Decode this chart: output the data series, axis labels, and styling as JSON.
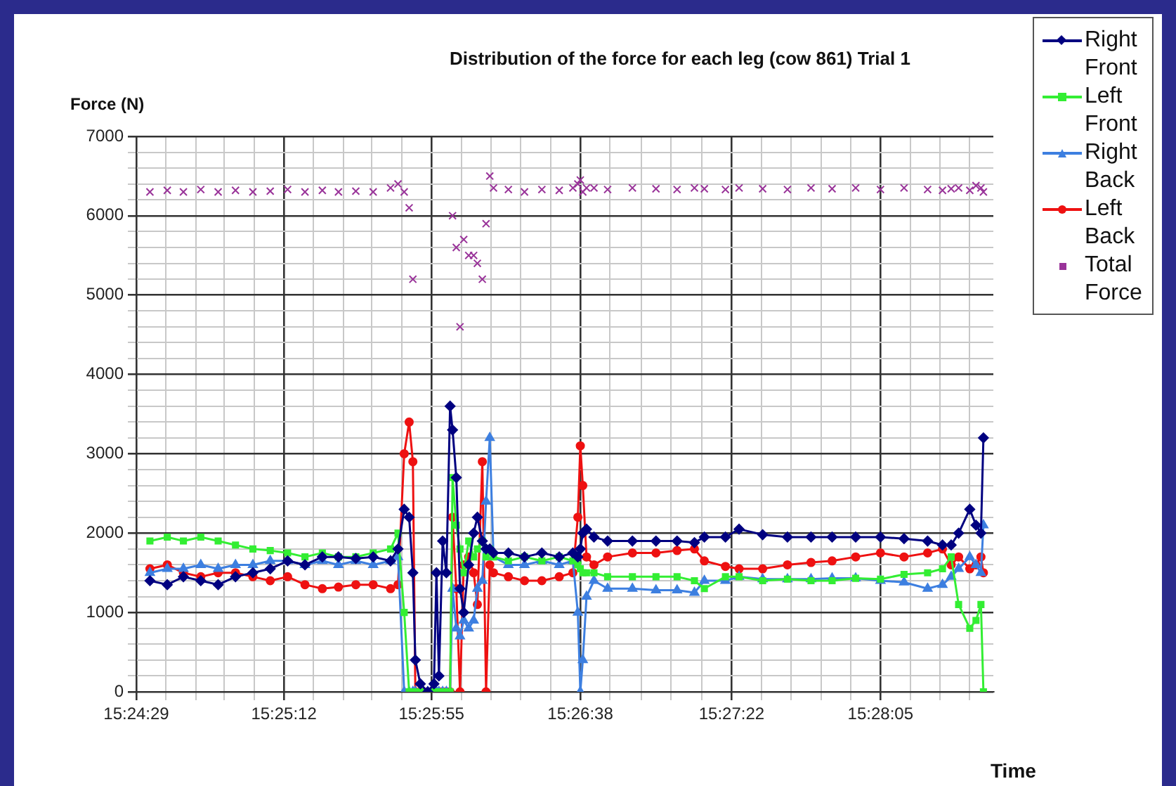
{
  "chart_data": {
    "type": "line",
    "title": "Distribution of the force for each leg (cow 861) Trial 1",
    "xlabel": "Time",
    "ylabel": "Force (N)",
    "x": [
      15.4092,
      15.4106,
      15.4119,
      15.4133,
      15.4147,
      15.4161,
      15.4175,
      15.4189,
      15.4203,
      15.4217,
      15.4231,
      15.4244,
      15.4258,
      15.4272,
      15.4286,
      15.4292,
      15.4297,
      15.4301,
      15.4304,
      15.4306,
      15.431,
      15.4316,
      15.4321,
      15.4323,
      15.4325,
      15.4328,
      15.4331,
      15.4334,
      15.4336,
      15.4339,
      15.4342,
      15.4345,
      15.4349,
      15.4353,
      15.4356,
      15.436,
      15.4363,
      15.4366,
      15.4369,
      15.4381,
      15.4394,
      15.4408,
      15.4422,
      15.4433,
      15.4437,
      15.4439,
      15.4441,
      15.4444,
      15.445,
      15.4461,
      15.4481,
      15.45,
      15.4517,
      15.4531,
      15.4539,
      15.4556,
      15.4567,
      15.4586,
      15.4606,
      15.4625,
      15.4642,
      15.4661,
      15.4681,
      15.47,
      15.4719,
      15.4731,
      15.4738,
      15.4744,
      15.4753,
      15.4758,
      15.4762,
      15.4764
    ],
    "series": [
      {
        "name": "Right Front",
        "color": "#000080",
        "marker": "diamond",
        "values": [
          1400,
          1350,
          1450,
          1400,
          1350,
          1450,
          1500,
          1550,
          1650,
          1600,
          1700,
          1700,
          1680,
          1700,
          1650,
          1800,
          2300,
          2200,
          1500,
          400,
          100,
          0,
          100,
          1500,
          200,
          1900,
          1500,
          3600,
          3300,
          2700,
          1300,
          1000,
          1600,
          2000,
          2200,
          1900,
          1800,
          1800,
          1750,
          1750,
          1700,
          1750,
          1700,
          1750,
          1700,
          1800,
          2000,
          2050,
          1950,
          1900,
          1900,
          1900,
          1900,
          1880,
          1950,
          1950,
          2050,
          1980,
          1950,
          1950,
          1950,
          1950,
          1950,
          1930,
          1900,
          1850,
          1850,
          2000,
          2300,
          2100,
          2000,
          3200
        ]
      },
      {
        "name": "Left Front",
        "color": "#33ee33",
        "marker": "square",
        "values": [
          1900,
          1950,
          1900,
          1950,
          1900,
          1850,
          1800,
          1780,
          1750,
          1700,
          1750,
          1700,
          1700,
          1750,
          1800,
          2000,
          1000,
          0,
          0,
          0,
          0,
          0,
          0,
          0,
          0,
          0,
          0,
          0,
          2700,
          2100,
          1800,
          1500,
          1900,
          1700,
          1800,
          1900,
          1700,
          1800,
          1700,
          1650,
          1700,
          1650,
          1700,
          1650,
          1600,
          1550,
          1500,
          1500,
          1500,
          1450,
          1450,
          1450,
          1450,
          1400,
          1300,
          1450,
          1450,
          1400,
          1420,
          1400,
          1400,
          1430,
          1420,
          1480,
          1500,
          1550,
          1700,
          1100,
          800,
          900,
          1100,
          0
        ]
      },
      {
        "name": "Right Back",
        "color": "#3d7fe0",
        "marker": "triangle",
        "values": [
          1500,
          1550,
          1550,
          1600,
          1550,
          1600,
          1600,
          1650,
          1650,
          1600,
          1650,
          1600,
          1650,
          1600,
          1650,
          1700,
          0,
          0,
          0,
          0,
          0,
          0,
          0,
          0,
          0,
          0,
          0,
          0,
          1300,
          800,
          700,
          900,
          800,
          900,
          1300,
          1400,
          2400,
          3200,
          1700,
          1600,
          1600,
          1650,
          1600,
          1650,
          1000,
          0,
          400,
          1200,
          1400,
          1300,
          1300,
          1280,
          1280,
          1250,
          1400,
          1400,
          1450,
          1420,
          1420,
          1420,
          1430,
          1430,
          1400,
          1380,
          1300,
          1350,
          1450,
          1550,
          1700,
          1600,
          1500,
          2100
        ]
      },
      {
        "name": "Left Back",
        "color": "#ee1111",
        "marker": "circle",
        "values": [
          1550,
          1600,
          1500,
          1450,
          1500,
          1500,
          1450,
          1400,
          1450,
          1350,
          1300,
          1320,
          1350,
          1350,
          1300,
          1350,
          3000,
          3400,
          2900,
          0,
          0,
          0,
          0,
          0,
          0,
          0,
          0,
          0,
          2200,
          1300,
          0,
          1600,
          1700,
          1500,
          1100,
          2900,
          0,
          1600,
          1500,
          1450,
          1400,
          1400,
          1450,
          1500,
          2200,
          3100,
          2600,
          1700,
          1600,
          1700,
          1750,
          1750,
          1780,
          1800,
          1650,
          1580,
          1550,
          1550,
          1600,
          1630,
          1650,
          1700,
          1750,
          1700,
          1750,
          1800,
          1600,
          1700,
          1550,
          1600,
          1700,
          1500
        ]
      },
      {
        "name": "Total Force",
        "color": "#993399",
        "type": "scatter",
        "marker": "cross",
        "values": [
          6300,
          6320,
          6300,
          6330,
          6300,
          6320,
          6300,
          6310,
          6330,
          6300,
          6320,
          6300,
          6310,
          6300,
          6350,
          6400,
          6300,
          6100,
          5200,
          null,
          null,
          null,
          null,
          null,
          null,
          null,
          null,
          null,
          6000,
          5600,
          4600,
          5700,
          5500,
          5500,
          5400,
          5200,
          5900,
          6500,
          6350,
          6330,
          6300,
          6330,
          6320,
          6350,
          6400,
          6450,
          6300,
          6350,
          6350,
          6330,
          6350,
          6340,
          6330,
          6350,
          6340,
          6330,
          6350,
          6340,
          6330,
          6350,
          6340,
          6350,
          6330,
          6350,
          6330,
          6320,
          6340,
          6350,
          6320,
          6380,
          6350,
          6300
        ]
      }
    ],
    "xlim": [
      15.4081,
      15.4772
    ],
    "xticks": [
      {
        "value": 15.4081,
        "label": "15:24:29"
      },
      {
        "value": 15.4105,
        "label": null
      },
      {
        "value": 15.4129,
        "label": null
      },
      {
        "value": 15.4152,
        "label": null
      },
      {
        "value": 15.4176,
        "label": null
      },
      {
        "value": 15.42,
        "label": "15:25:12"
      },
      {
        "value": 15.4224,
        "label": null
      },
      {
        "value": 15.4248,
        "label": null
      },
      {
        "value": 15.4271,
        "label": null
      },
      {
        "value": 15.4295,
        "label": null
      },
      {
        "value": 15.4319,
        "label": "15:25:55"
      },
      {
        "value": 15.4343,
        "label": null
      },
      {
        "value": 15.4367,
        "label": null
      },
      {
        "value": 15.4391,
        "label": null
      },
      {
        "value": 15.4415,
        "label": null
      },
      {
        "value": 15.4439,
        "label": "15:26:38"
      },
      {
        "value": 15.4463,
        "label": null
      },
      {
        "value": 15.4488,
        "label": null
      },
      {
        "value": 15.4512,
        "label": null
      },
      {
        "value": 15.4537,
        "label": null
      },
      {
        "value": 15.4561,
        "label": "15:27:22"
      },
      {
        "value": 15.4585,
        "label": null
      },
      {
        "value": 15.4609,
        "label": null
      },
      {
        "value": 15.4633,
        "label": null
      },
      {
        "value": 15.4657,
        "label": null
      },
      {
        "value": 15.4681,
        "label": "15:28:05"
      },
      {
        "value": 15.4705,
        "label": null
      },
      {
        "value": 15.4729,
        "label": null
      },
      {
        "value": 15.4753,
        "label": null
      }
    ],
    "ylim": [
      0,
      7000
    ],
    "yticks": [
      0,
      {
        "value": 200,
        "label": null
      },
      {
        "value": 400,
        "label": null
      },
      {
        "value": 600,
        "label": null
      },
      {
        "value": 800,
        "label": null
      },
      1000,
      {
        "value": 1200,
        "label": null
      },
      {
        "value": 1400,
        "label": null
      },
      {
        "value": 1600,
        "label": null
      },
      {
        "value": 1800,
        "label": null
      },
      2000,
      {
        "value": 2200,
        "label": null
      },
      {
        "value": 2400,
        "label": null
      },
      {
        "value": 2600,
        "label": null
      },
      {
        "value": 2800,
        "label": null
      },
      3000,
      {
        "value": 3200,
        "label": null
      },
      {
        "value": 3400,
        "label": null
      },
      {
        "value": 3600,
        "label": null
      },
      {
        "value": 3800,
        "label": null
      },
      4000,
      {
        "value": 4200,
        "label": null
      },
      {
        "value": 4400,
        "label": null
      },
      {
        "value": 4600,
        "label": null
      },
      {
        "value": 4800,
        "label": null
      },
      5000,
      {
        "value": 5200,
        "label": null
      },
      {
        "value": 5400,
        "label": null
      },
      {
        "value": 5600,
        "label": null
      },
      {
        "value": 5800,
        "label": null
      },
      6000,
      {
        "value": 6200,
        "label": null
      },
      {
        "value": 6400,
        "label": null
      },
      {
        "value": 6600,
        "label": null
      },
      {
        "value": 6800,
        "label": null
      },
      7000
    ],
    "grid": true,
    "legend": "top right"
  }
}
